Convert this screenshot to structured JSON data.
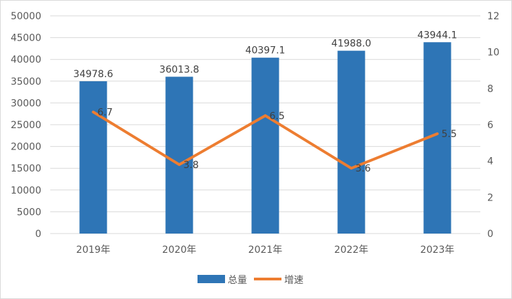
{
  "chart_data": {
    "type": "bar+line",
    "categories": [
      "2019年",
      "2020年",
      "2021年",
      "2022年",
      "2023年"
    ],
    "series": [
      {
        "name": "总量",
        "type": "bar",
        "axis": "left",
        "values": [
          34978.6,
          36013.8,
          40397.1,
          41988.0,
          43944.1
        ],
        "labels": [
          "34978.6",
          "36013.8",
          "40397.1",
          "41988.0",
          "43944.1"
        ],
        "color": "#2E75B6"
      },
      {
        "name": "增速",
        "type": "line",
        "axis": "right",
        "values": [
          6.7,
          3.8,
          6.5,
          3.6,
          5.5
        ],
        "labels": [
          "6.7",
          "3.8",
          "6.5",
          "3.6",
          "5.5"
        ],
        "color": "#ED7D31"
      }
    ],
    "y_left": {
      "min": 0,
      "max": 50000,
      "step": 5000,
      "ticks": [
        "0",
        "5000",
        "10000",
        "15000",
        "20000",
        "25000",
        "30000",
        "35000",
        "40000",
        "45000",
        "50000"
      ]
    },
    "y_right": {
      "min": 0,
      "max": 12,
      "step": 2,
      "ticks": [
        "0",
        "2",
        "4",
        "6",
        "8",
        "10",
        "12"
      ]
    },
    "grid": true,
    "legend": "bottom"
  }
}
